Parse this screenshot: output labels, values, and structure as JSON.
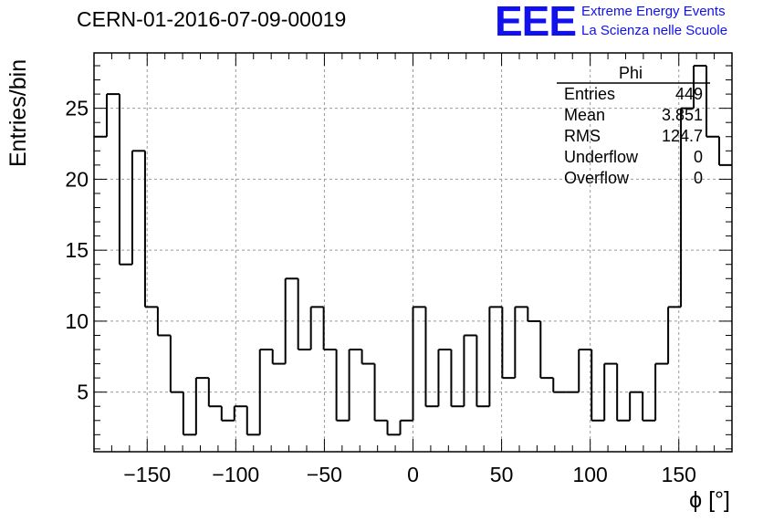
{
  "header": {
    "title": "CERN-01-2016-07-09-00019",
    "logo": "EEE",
    "logo_line1": "Extreme Energy Events",
    "logo_line2": "La Scienza nelle Scuole"
  },
  "stats": {
    "title": "Phi",
    "rows": [
      {
        "label": "Entries",
        "value": "449"
      },
      {
        "label": "Mean",
        "value": "3.851"
      },
      {
        "label": "RMS",
        "value": "124.7"
      },
      {
        "label": "Underflow",
        "value": "0"
      },
      {
        "label": "Overflow",
        "value": "0"
      }
    ]
  },
  "colors": {
    "logo": "#1111ee",
    "line": "#000000",
    "grid": "#999999"
  },
  "chart_data": {
    "type": "histogram",
    "xlabel": "ϕ [°]",
    "ylabel": "Entries/bin",
    "xlim": [
      -180,
      180
    ],
    "ylim": [
      0.8,
      28.9
    ],
    "bin_width": 7.2,
    "x_ticks": [
      -150,
      -100,
      -50,
      0,
      50,
      100,
      150
    ],
    "x_tick_labels": [
      "−150",
      "−100",
      "−50",
      "0",
      "50",
      "100",
      "150"
    ],
    "y_ticks": [
      5,
      10,
      15,
      20,
      25
    ],
    "y_tick_labels": [
      "5",
      "10",
      "15",
      "20",
      "25"
    ],
    "grid": true,
    "bin_edges_start": -180,
    "values": [
      23,
      26,
      14,
      22,
      11,
      9,
      5,
      2,
      6,
      4,
      3,
      4,
      2,
      8,
      7,
      13,
      8,
      11,
      8,
      3,
      8,
      7,
      3,
      2,
      3,
      11,
      4,
      8,
      4,
      9,
      4,
      11,
      6,
      11,
      10,
      6,
      5,
      5,
      8,
      3,
      7,
      3,
      5,
      3,
      7,
      11,
      25,
      28,
      23,
      21
    ]
  }
}
